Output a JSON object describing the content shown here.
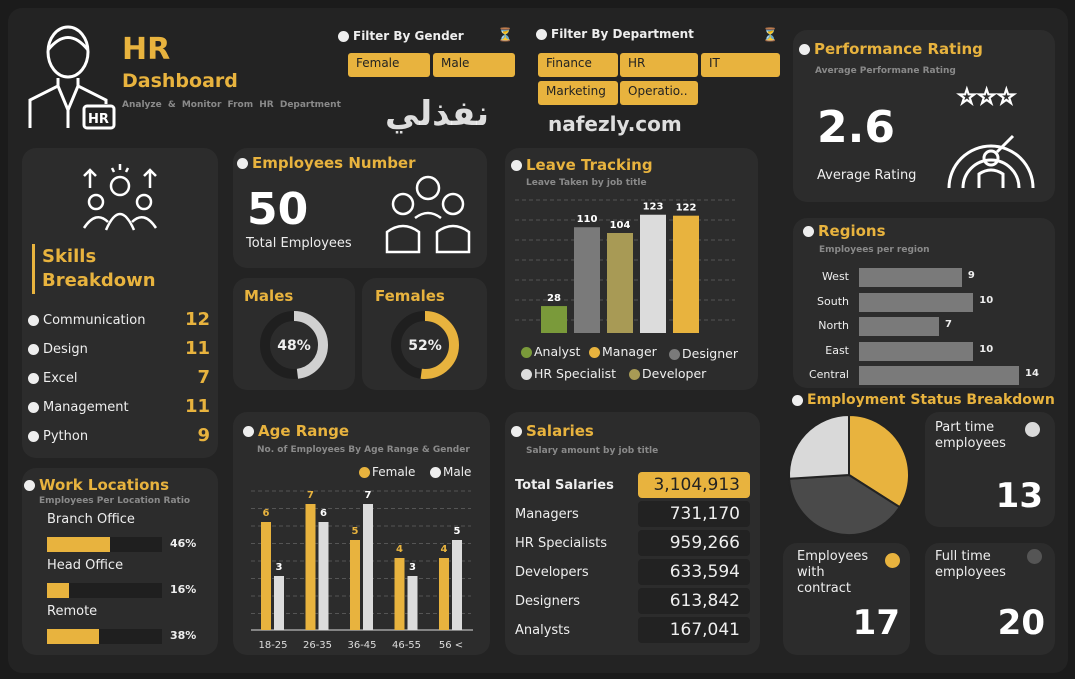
{
  "header": {
    "title": "HR",
    "title2": "Dashboard",
    "subtitle": "Analyze & Monitor From HR Department",
    "icon_badge": "HR"
  },
  "filters": {
    "gender": {
      "label": "Filter By Gender",
      "options": [
        "Female",
        "Male"
      ]
    },
    "department": {
      "label": "Filter By Department",
      "options": [
        "Finance",
        "HR",
        "IT",
        "Marketing",
        "Operatio.."
      ]
    }
  },
  "performance": {
    "title": "Performance Rating",
    "subtitle": "Average Performane Rating",
    "value": "2.6",
    "label": "Average Rating"
  },
  "skills": {
    "title1": "Skills",
    "title2": "Breakdown",
    "items": [
      {
        "label": "Communication",
        "value": "12"
      },
      {
        "label": "Design",
        "value": "11"
      },
      {
        "label": "Excel",
        "value": "7"
      },
      {
        "label": "Management",
        "value": "11"
      },
      {
        "label": "Python",
        "value": "9"
      }
    ]
  },
  "employees": {
    "title": "Employees Number",
    "value": "50",
    "label": "Total Employees"
  },
  "males": {
    "title": "Males",
    "value": "48%",
    "pct": 48
  },
  "females": {
    "title": "Females",
    "value": "52%",
    "pct": 52
  },
  "leave": {
    "title": "Leave Tracking",
    "subtitle": "Leave Taken by job title",
    "bars": [
      {
        "name": "Analyst",
        "value": 28,
        "label": "28",
        "color": "#7a9a3a"
      },
      {
        "name": "Designer",
        "value": 110,
        "label": "110",
        "color": "#7a7a7a"
      },
      {
        "name": "Developer",
        "value": 104,
        "label": "104",
        "color": "#a89a55"
      },
      {
        "name": "HR Specialist",
        "value": 123,
        "label": "123",
        "color": "#dcdcdc"
      },
      {
        "name": "Manager",
        "value": 122,
        "label": "122",
        "color": "#e8b33e"
      }
    ],
    "legend": [
      "Analyst",
      "Manager",
      "Designer",
      "HR Specialist",
      "Developer"
    ],
    "legend_colors": [
      "#7a9a3a",
      "#e8b33e",
      "#7a7a7a",
      "#dcdcdc",
      "#a89a55"
    ]
  },
  "regions": {
    "title": "Regions",
    "subtitle": "Employees per region",
    "items": [
      {
        "label": "West",
        "value": 9,
        "text": "9"
      },
      {
        "label": "South",
        "value": 10,
        "text": "10"
      },
      {
        "label": "North",
        "value": 7,
        "text": "7"
      },
      {
        "label": "East",
        "value": 10,
        "text": "10"
      },
      {
        "label": "Central",
        "value": 14,
        "text": "14"
      }
    ]
  },
  "work": {
    "title": "Work Locations",
    "subtitle": "Employees Per Location Ratio",
    "items": [
      {
        "label": "Branch Office",
        "pct": 46,
        "text": "46%"
      },
      {
        "label": "Head Office",
        "pct": 16,
        "text": "16%"
      },
      {
        "label": "Remote",
        "pct": 38,
        "text": "38%"
      }
    ]
  },
  "age": {
    "title": "Age Range",
    "subtitle": "No. of Employees By Age Range & Gender",
    "legend": [
      "Female",
      "Male"
    ],
    "categories": [
      "18-25",
      "26-35",
      "36-45",
      "46-55",
      "56 <"
    ],
    "female": [
      6,
      7,
      5,
      4,
      4
    ],
    "male": [
      3,
      6,
      7,
      3,
      5
    ],
    "female_labels": [
      "6",
      "7",
      "5",
      "4",
      "4"
    ],
    "male_labels": [
      "3",
      "6",
      "7",
      "3",
      "5"
    ]
  },
  "salaries": {
    "title": "Salaries",
    "subtitle": "Salary amount by job title",
    "total_label": "Total Salaries",
    "total": "3,104,913",
    "rows": [
      {
        "label": "Managers",
        "value": "731,170"
      },
      {
        "label": "HR Specialists",
        "value": "959,266"
      },
      {
        "label": "Developers",
        "value": "633,594"
      },
      {
        "label": "Designers",
        "value": "613,842"
      },
      {
        "label": "Analysts",
        "value": "167,041"
      }
    ]
  },
  "status": {
    "title": "Employment Status Breakdown",
    "part": {
      "label": "Part time employees",
      "value": "13",
      "count": 13,
      "color": "#d9d9d9"
    },
    "contract": {
      "label": "Employees with contract",
      "value": "17",
      "count": 17,
      "color": "#e8b33e"
    },
    "full": {
      "label": "Full time employees",
      "value": "20",
      "count": 20,
      "color": "#4a4a4a"
    }
  },
  "watermark": {
    "arabic": "نفذلي",
    "latin": "nafezly.com"
  }
}
